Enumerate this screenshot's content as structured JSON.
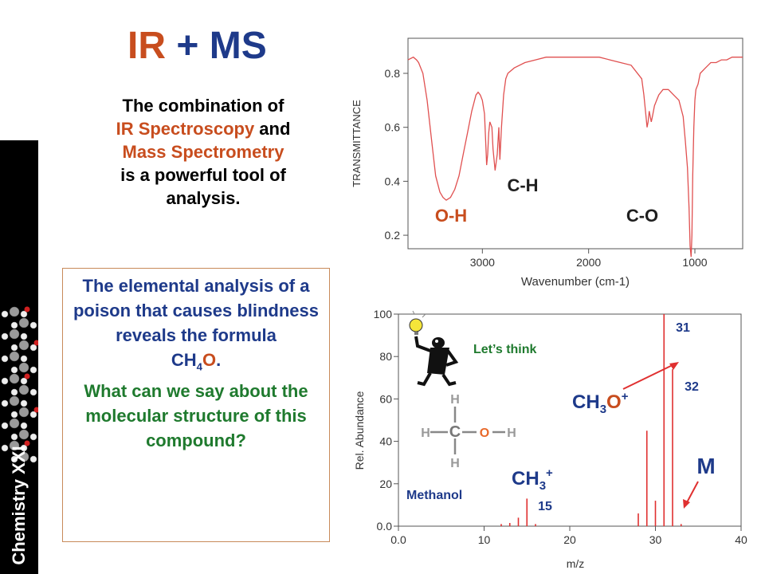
{
  "sidebar": {
    "label": "Chemistry XXI"
  },
  "title": {
    "part1": "IR",
    "part2": " + MS"
  },
  "intro": {
    "line1": "The combination of",
    "ir": "IR Spectroscopy",
    "and": " and",
    "ms": "Mass Spectrometry",
    "line4": "is a powerful tool of",
    "line5": "analysis."
  },
  "question": {
    "blue_text": "The elemental analysis of a poison that causes blindness reveals the formula",
    "formula_c": "C",
    "formula_h": "H",
    "formula_h_sub": "4",
    "formula_o": "O",
    "formula_end": ".",
    "green_text": "What can we say about the molecular structure of this compound?"
  },
  "colors": {
    "orange": "#c84d1e",
    "blue": "#1e3a8a",
    "green": "#1f7a2e",
    "ir_line": "#e05050",
    "ms_line": "#e03030"
  },
  "chart_data": [
    {
      "type": "line",
      "xlabel": "Wavenumber (cm-1)",
      "ylabel": "TRANSMITTANCE",
      "xlim": [
        3700,
        550
      ],
      "ylim": [
        0.15,
        0.93
      ],
      "x_ticks": [
        3000,
        2000,
        1000
      ],
      "y_ticks": [
        0.2,
        0.4,
        0.6,
        0.8
      ],
      "series": [
        {
          "x": [
            3700,
            3650,
            3620,
            3600,
            3560,
            3520,
            3480,
            3440,
            3400,
            3370,
            3340,
            3300,
            3260,
            3220,
            3180,
            3140,
            3100,
            3060,
            3040,
            3020,
            3000,
            2980,
            2970,
            2960,
            2950,
            2940,
            2930,
            2910,
            2900,
            2880,
            2860,
            2845,
            2835,
            2820,
            2800,
            2780,
            2760,
            2700,
            2600,
            2500,
            2400,
            2300,
            2200,
            2100,
            2000,
            1900,
            1800,
            1700,
            1600,
            1500,
            1480,
            1460,
            1450,
            1440,
            1430,
            1420,
            1410,
            1400,
            1380,
            1360,
            1340,
            1300,
            1250,
            1200,
            1150,
            1110,
            1090,
            1070,
            1055,
            1045,
            1035,
            1028,
            1020,
            1010,
            1000,
            990,
            970,
            950,
            900,
            850,
            800,
            750,
            700,
            650,
            600,
            550
          ],
          "y": [
            0.85,
            0.86,
            0.85,
            0.84,
            0.8,
            0.7,
            0.56,
            0.42,
            0.36,
            0.34,
            0.33,
            0.34,
            0.37,
            0.42,
            0.5,
            0.58,
            0.66,
            0.72,
            0.73,
            0.72,
            0.7,
            0.65,
            0.56,
            0.46,
            0.5,
            0.58,
            0.62,
            0.6,
            0.52,
            0.44,
            0.5,
            0.6,
            0.48,
            0.6,
            0.72,
            0.78,
            0.8,
            0.82,
            0.84,
            0.85,
            0.86,
            0.86,
            0.86,
            0.86,
            0.86,
            0.86,
            0.85,
            0.84,
            0.83,
            0.78,
            0.72,
            0.64,
            0.6,
            0.62,
            0.66,
            0.64,
            0.62,
            0.64,
            0.68,
            0.7,
            0.72,
            0.74,
            0.74,
            0.72,
            0.7,
            0.64,
            0.55,
            0.45,
            0.3,
            0.16,
            0.12,
            0.2,
            0.42,
            0.6,
            0.7,
            0.74,
            0.76,
            0.8,
            0.82,
            0.84,
            0.84,
            0.85,
            0.85,
            0.86,
            0.86,
            0.86
          ]
        }
      ],
      "annotations": [
        {
          "label": "C-H",
          "color": "#1f1f1f"
        },
        {
          "label": "O-H",
          "color": "#c84d1e"
        },
        {
          "label": "C-O",
          "color": "#1f1f1f"
        }
      ]
    },
    {
      "type": "bar",
      "xlabel": "m/z",
      "ylabel": "Rel. Abundance",
      "xlim": [
        0,
        40
      ],
      "ylim": [
        0,
        100
      ],
      "x_ticks": [
        "0.0",
        "10",
        "20",
        "30",
        "40"
      ],
      "y_ticks": [
        "0.0",
        "20",
        "40",
        "60",
        "80",
        "100"
      ],
      "x": [
        12,
        13,
        14,
        15,
        16,
        28,
        29,
        30,
        31,
        32,
        33
      ],
      "values": [
        1,
        1.5,
        4,
        13,
        1,
        6,
        45,
        12,
        100,
        74,
        1
      ],
      "peak_labels": [
        {
          "text": "31",
          "color": "#1e3a8a"
        },
        {
          "text": "32",
          "color": "#1e3a8a"
        },
        {
          "text": "15",
          "color": "#1e3a8a"
        }
      ],
      "fragment_labels": {
        "ch3o_c": "C",
        "ch3o_h": "H",
        "ch3o_sub": "3",
        "ch3o_o": "O",
        "ch3o_sup": "+",
        "ch3_c": "C",
        "ch3_h": "H",
        "ch3_sub": "3",
        "ch3_sup": "+",
        "m": "M"
      },
      "think_label": "Let’s think",
      "molecule_name": "Methanol",
      "atoms": {
        "h": "H",
        "c": "C",
        "o": "O"
      }
    }
  ]
}
